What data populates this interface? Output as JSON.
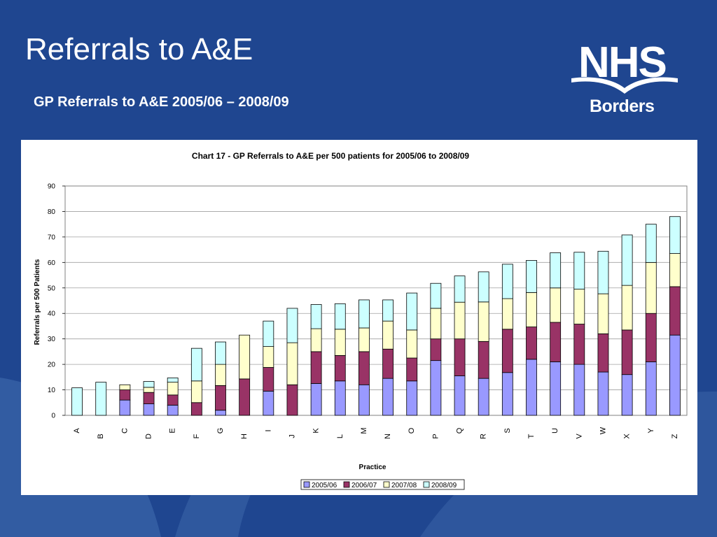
{
  "slide": {
    "title": "Referrals to A&E",
    "subtitle": "GP Referrals to A&E 2005/06 – 2008/09",
    "logo": {
      "line1": "NHS",
      "line2": "Borders"
    },
    "colors": {
      "background": "#1f4690",
      "swoosh": "#3a64a8",
      "chart_area": "#ffffff"
    }
  },
  "chart_data": {
    "type": "bar",
    "stacked": true,
    "title": "Chart 17 -  GP Referrals to A&E per 500 patients for 2005/06 to 2008/09",
    "xlabel": "Practice",
    "ylabel": "Referrals per 500 Patients",
    "ylim": [
      0,
      90
    ],
    "yticks": [
      0,
      10,
      20,
      30,
      40,
      50,
      60,
      70,
      80,
      90
    ],
    "grid": true,
    "legend": "bottom",
    "categories": [
      "A",
      "B",
      "C",
      "D",
      "E",
      "F",
      "G",
      "H",
      "I",
      "J",
      "K",
      "L",
      "M",
      "N",
      "O",
      "P",
      "Q",
      "R",
      "S",
      "T",
      "U",
      "V",
      "W",
      "X",
      "Y",
      "Z"
    ],
    "series": [
      {
        "name": "2005/06",
        "color": "#9999ff",
        "values": [
          0,
          0,
          6,
          4.5,
          4,
          0,
          2,
          0,
          9.5,
          0,
          12.5,
          13.5,
          12,
          14.5,
          13.5,
          21.5,
          15.5,
          14.5,
          16.8,
          22,
          21,
          20,
          17,
          16,
          21,
          31.5
        ]
      },
      {
        "name": "2006/07",
        "color": "#993366",
        "values": [
          0,
          0,
          4,
          4.5,
          4,
          5,
          9.7,
          14.3,
          9.3,
          12,
          12.5,
          10,
          13,
          11.5,
          9,
          8.5,
          14.5,
          14.5,
          17,
          12.7,
          15.5,
          15.8,
          15,
          17.5,
          19,
          19
        ]
      },
      {
        "name": "2007/08",
        "color": "#ffffcc",
        "values": [
          0,
          0,
          2,
          2,
          5,
          8.5,
          8.3,
          17.2,
          8.2,
          16.5,
          9,
          10.3,
          9.3,
          11,
          11,
          12,
          14.4,
          15.5,
          12,
          13.5,
          13.5,
          13.7,
          15.7,
          17.5,
          20,
          13
        ]
      },
      {
        "name": "2008/09",
        "color": "#ccffff",
        "values": [
          10.8,
          13,
          0,
          2.3,
          1.7,
          12.8,
          8.8,
          0,
          10,
          13.5,
          9.5,
          10,
          11,
          8.3,
          14.5,
          9.8,
          10.3,
          11.8,
          13.5,
          12.6,
          13.8,
          14.5,
          16.7,
          19.8,
          15,
          14.5
        ]
      }
    ]
  }
}
